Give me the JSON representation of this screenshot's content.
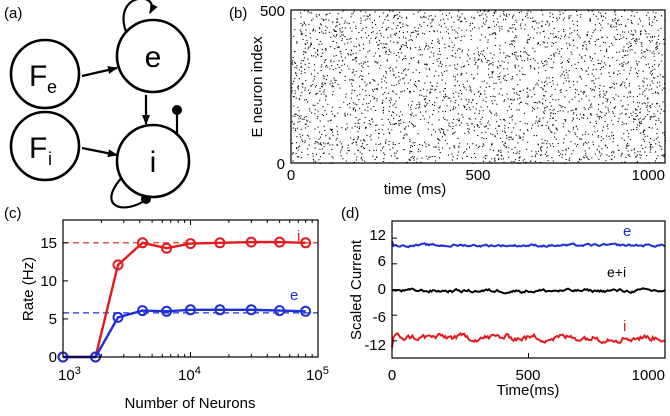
{
  "panels": {
    "a": {
      "label": "(a)",
      "nodes": [
        {
          "id": "Fe",
          "main": "F",
          "sub": "e"
        },
        {
          "id": "e",
          "main": "e",
          "sub": ""
        },
        {
          "id": "Fi",
          "main": "F",
          "sub": "i"
        },
        {
          "id": "i",
          "main": "i",
          "sub": ""
        }
      ]
    },
    "b": {
      "label": "(b)"
    },
    "c": {
      "label": "(c)"
    },
    "d": {
      "label": "(d)"
    }
  },
  "chart_data": [
    {
      "panel": "b",
      "type": "scatter",
      "title": "",
      "xlabel": "time (ms)",
      "ylabel": "E neuron index",
      "xlim": [
        0,
        1000
      ],
      "ylim": [
        0,
        500
      ],
      "xticks": [
        "0",
        "500",
        "1000"
      ],
      "yticks": [
        "0",
        "500"
      ],
      "raster": {
        "neurons": 500,
        "duration_ms": 1000,
        "mean_rate_hz": 6,
        "color": "#000000"
      }
    },
    {
      "panel": "c",
      "type": "line",
      "title": "",
      "xlabel": "Number of Neurons",
      "ylabel": "Rate (Hz)",
      "xscale": "log",
      "xlim": [
        1000,
        100000
      ],
      "ylim": [
        0,
        18
      ],
      "xticks": [
        {
          "base": "10",
          "exp": "3"
        },
        {
          "base": "10",
          "exp": "4"
        },
        {
          "base": "10",
          "exp": "5"
        }
      ],
      "yticks": [
        "0",
        "5",
        "10",
        "15"
      ],
      "x": [
        1000,
        1800,
        2700,
        4200,
        6500,
        10000,
        17000,
        30000,
        50000,
        80000
      ],
      "series": [
        {
          "name": "i",
          "color": "#e41a1c",
          "values": [
            0,
            0,
            12.1,
            15.0,
            14.3,
            14.9,
            15.0,
            15.1,
            15.1,
            15.0
          ],
          "reference": 15
        },
        {
          "name": "e",
          "color": "#1f2fd8",
          "values": [
            0,
            0,
            5.2,
            6.1,
            6.0,
            6.2,
            6.2,
            6.2,
            6.1,
            6.0
          ],
          "reference": 5.8
        }
      ]
    },
    {
      "panel": "d",
      "type": "line",
      "title": "",
      "xlabel": "Time(ms)",
      "ylabel": "Scaled Current",
      "xlim": [
        0,
        1000
      ],
      "ylim": [
        -16,
        16
      ],
      "xticks": [
        "0",
        "500",
        "1000"
      ],
      "yticks": [
        "12",
        "6",
        "0",
        "-6",
        "-12"
      ],
      "series": [
        {
          "name": "e",
          "color": "#1f2fd8",
          "mean": 10.3,
          "amplitude": 0.35
        },
        {
          "name": "e+i",
          "color": "#000000",
          "mean": -0.3,
          "amplitude": 0.45
        },
        {
          "name": "i",
          "color": "#e41a1c",
          "mean": -11.2,
          "amplitude": 0.9
        }
      ]
    }
  ]
}
